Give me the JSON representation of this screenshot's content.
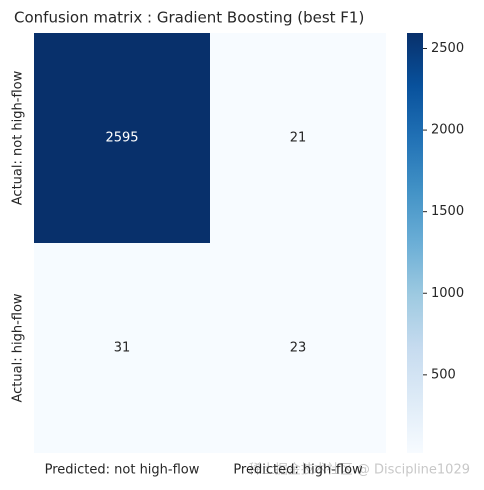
{
  "chart_data": {
    "type": "heatmap",
    "title": "Confusion matrix : Gradient Boosting (best F1)",
    "x_categories": [
      "Predicted: not high-flow",
      "Predicted: high-flow"
    ],
    "y_categories": [
      "Actual: not high-flow",
      "Actual: high-flow"
    ],
    "values": [
      [
        2595,
        21
      ],
      [
        31,
        23
      ]
    ],
    "colormap": "Blues",
    "clim": [
      21,
      2595
    ],
    "cticks": [
      500,
      1000,
      1500,
      2000,
      2500
    ],
    "watermark": "稀土掘金技术社区 @ Discipline1029"
  }
}
